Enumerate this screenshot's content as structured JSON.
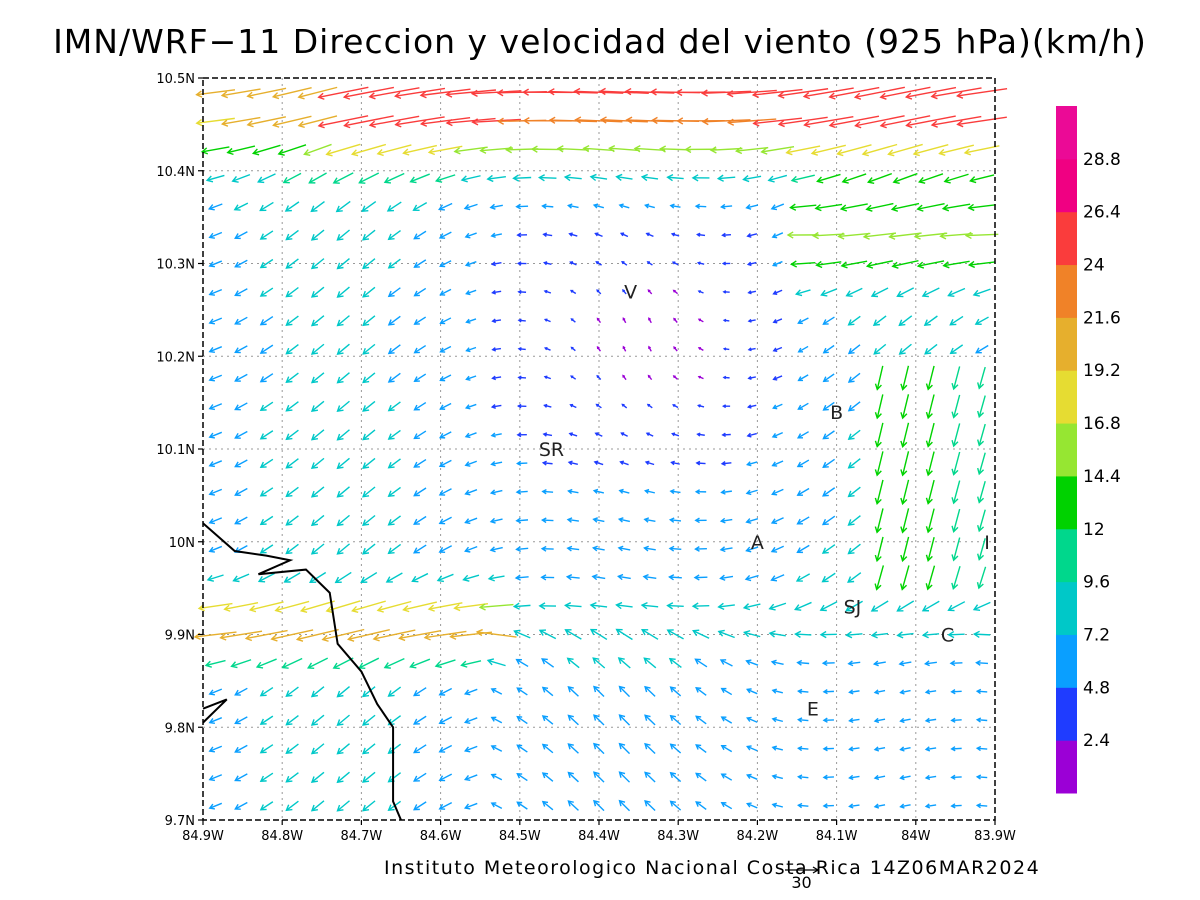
{
  "title": "IMN/WRF−11 Direccion y velocidad del viento (925 hPa)(km/h)",
  "footer": "Instituto Meteorologico Nacional Costa Rica 14Z06MAR2024",
  "reference_vector_label": "30",
  "colors": {
    "frame": "#000000",
    "grid": "#999999",
    "coastline": "#000000"
  },
  "chart_data": {
    "type": "vector_field",
    "title": "IMN/WRF−11 Direccion y velocidad del viento (925 hPa)(km/h)",
    "units": "km/h",
    "longitude_range": [
      -84.9,
      -83.9
    ],
    "latitude_range": [
      9.7,
      10.5
    ],
    "grid": true,
    "x_ticks": [
      "84.9W",
      "84.8W",
      "84.7W",
      "84.6W",
      "84.5W",
      "84.4W",
      "84.3W",
      "84.2W",
      "84.1W",
      "84W",
      "83.9W"
    ],
    "y_ticks": [
      "10.5N",
      "10.4N",
      "10.3N",
      "10.2N",
      "10.1N",
      "10N",
      "9.9N",
      "9.8N",
      "9.7N"
    ],
    "places": [
      {
        "label": "V",
        "lon": -84.36,
        "lat": 10.27
      },
      {
        "label": "B",
        "lon": -84.1,
        "lat": 10.14
      },
      {
        "label": "SR",
        "lon": -84.46,
        "lat": 10.1
      },
      {
        "label": "A",
        "lon": -84.2,
        "lat": 10.0
      },
      {
        "label": "I",
        "lon": -83.91,
        "lat": 10.0
      },
      {
        "label": "SJ",
        "lon": -84.08,
        "lat": 9.93
      },
      {
        "label": "C",
        "lon": -83.96,
        "lat": 9.9
      },
      {
        "label": "E",
        "lon": -84.13,
        "lat": 9.82
      }
    ],
    "colorbar": {
      "labels": [
        "2.4",
        "4.8",
        "7.2",
        "9.6",
        "12",
        "14.4",
        "16.8",
        "19.2",
        "21.6",
        "24",
        "26.4",
        "28.8"
      ],
      "colors": [
        "#9b00d6",
        "#1f3cff",
        "#0a9fff",
        "#00c8c8",
        "#00d78c",
        "#00d200",
        "#96e632",
        "#e6dc32",
        "#e6af2d",
        "#f08228",
        "#fa3c3c",
        "#f00082",
        "#eb0a96"
      ]
    },
    "reference_vector": {
      "speed": 30,
      "units": "km/h"
    },
    "coastline": [
      [
        -84.9,
        10.02
      ],
      [
        -84.86,
        9.99
      ],
      [
        -84.82,
        9.985
      ],
      [
        -84.79,
        9.98
      ],
      [
        -84.83,
        9.965
      ],
      [
        -84.77,
        9.97
      ],
      [
        -84.74,
        9.945
      ],
      [
        -84.73,
        9.89
      ],
      [
        -84.7,
        9.86
      ],
      [
        -84.68,
        9.825
      ],
      [
        -84.66,
        9.8
      ],
      [
        -84.66,
        9.76
      ],
      [
        -84.66,
        9.72
      ],
      [
        -84.65,
        9.7
      ]
    ],
    "peninsula": [
      [
        -84.9,
        9.82
      ],
      [
        -84.87,
        9.83
      ],
      [
        -84.9,
        9.805
      ]
    ]
  }
}
